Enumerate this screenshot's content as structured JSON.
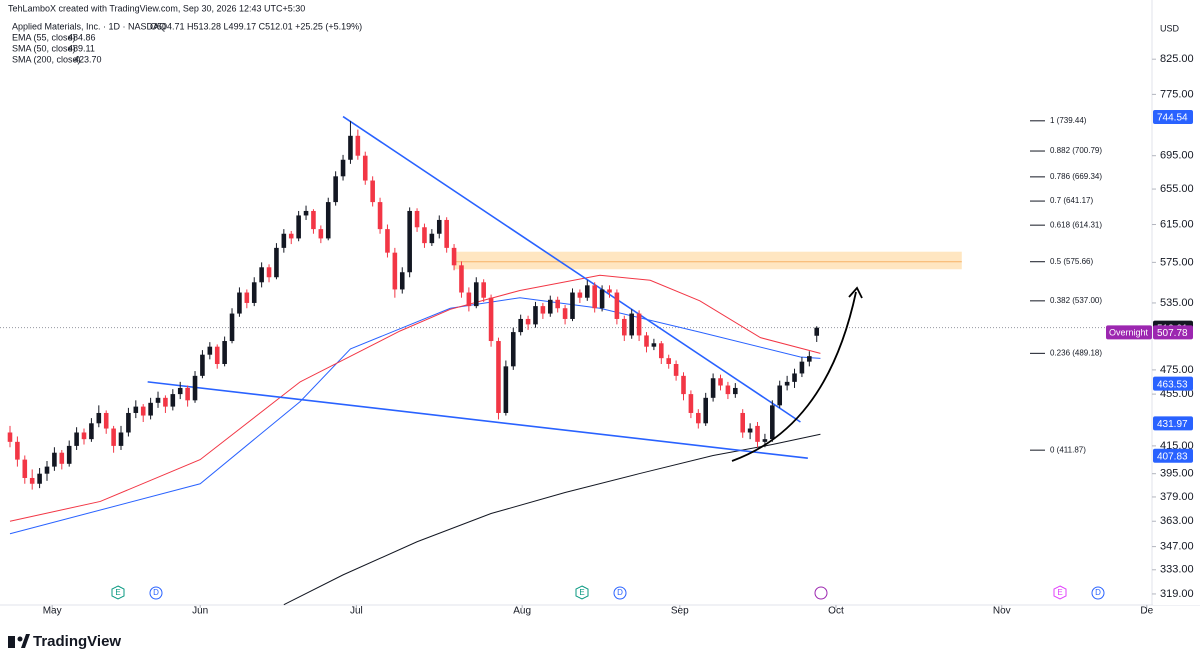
{
  "chart_data": {
    "type": "candlestick",
    "watermark": "TehLamboX created with TradingView.com, Sep 30, 2026 12:43 UTC+5:30",
    "symbol": "Applied Materials, Inc. · 1D · NASDAQ",
    "ohlc": "O504.71 H513.28 L499.17 C512.01 +25.25 (+5.19%)",
    "currency": "USD",
    "brand": "TradingView",
    "log": true,
    "ylim": [
      312.8,
      916.5
    ],
    "xlim": [
      -1.35,
      154.3
    ],
    "up_color": "#131722",
    "down_color": "#f23645",
    "yticks": [
      {
        "value": 825,
        "label": "825.00"
      },
      {
        "value": 775,
        "label": "775.00"
      },
      {
        "value": 695,
        "label": "695.00"
      },
      {
        "value": 655,
        "label": "655.00"
      },
      {
        "value": 615,
        "label": "615.00"
      },
      {
        "value": 575,
        "label": "575.00"
      },
      {
        "value": 535,
        "label": "535.00"
      },
      {
        "value": 475,
        "label": "475.00"
      },
      {
        "value": 455,
        "label": "455.00"
      },
      {
        "value": 415,
        "label": "415.00"
      },
      {
        "value": 395,
        "label": "395.00"
      },
      {
        "value": 379,
        "label": "379.00"
      },
      {
        "value": 363,
        "label": "363.00"
      },
      {
        "value": 347,
        "label": "347.00"
      },
      {
        "value": 333,
        "label": "333.00"
      },
      {
        "value": 319,
        "label": "319.00"
      }
    ],
    "xticks": [
      {
        "value": 5.7,
        "label": "May"
      },
      {
        "value": 25.7,
        "label": "Jun"
      },
      {
        "value": 46.8,
        "label": "Jul"
      },
      {
        "value": 69.2,
        "label": "Aug"
      },
      {
        "value": 90.5,
        "label": "Sep"
      },
      {
        "value": 111.6,
        "label": "Oct"
      },
      {
        "value": 134,
        "label": "Nov"
      },
      {
        "value": 153.6,
        "label": "De"
      }
    ],
    "candles": [
      [
        425,
        430,
        414,
        418
      ],
      [
        418,
        422,
        400,
        405
      ],
      [
        405,
        408,
        388,
        392
      ],
      [
        392,
        398,
        384,
        388
      ],
      [
        388,
        399,
        385,
        395
      ],
      [
        395,
        404,
        390,
        400
      ],
      [
        400,
        414,
        397,
        410
      ],
      [
        410,
        412,
        398,
        402
      ],
      [
        402,
        419,
        400,
        415
      ],
      [
        415,
        429,
        412,
        425
      ],
      [
        425,
        428,
        416,
        420
      ],
      [
        420,
        436,
        418,
        432
      ],
      [
        432,
        446,
        429,
        440
      ],
      [
        440,
        442,
        424,
        428
      ],
      [
        428,
        430,
        410,
        415
      ],
      [
        415,
        430,
        412,
        425
      ],
      [
        425,
        444,
        422,
        440
      ],
      [
        440,
        450,
        436,
        445
      ],
      [
        445,
        447,
        433,
        438
      ],
      [
        438,
        452,
        435,
        448
      ],
      [
        448,
        457,
        444,
        452
      ],
      [
        452,
        454,
        440,
        445
      ],
      [
        445,
        459,
        442,
        455
      ],
      [
        455,
        465,
        451,
        460
      ],
      [
        460,
        462,
        445,
        450
      ],
      [
        450,
        474,
        448,
        470
      ],
      [
        470,
        492,
        468,
        488
      ],
      [
        488,
        499,
        484,
        495
      ],
      [
        495,
        497,
        476,
        480
      ],
      [
        480,
        504,
        478,
        500
      ],
      [
        500,
        530,
        498,
        525
      ],
      [
        525,
        550,
        522,
        545
      ],
      [
        545,
        548,
        530,
        535
      ],
      [
        535,
        560,
        532,
        555
      ],
      [
        555,
        575,
        550,
        570
      ],
      [
        570,
        573,
        555,
        560
      ],
      [
        560,
        595,
        558,
        590
      ],
      [
        590,
        610,
        585,
        605
      ],
      [
        605,
        608,
        594,
        600
      ],
      [
        600,
        630,
        597,
        625
      ],
      [
        625,
        636,
        620,
        630
      ],
      [
        630,
        632,
        605,
        610
      ],
      [
        610,
        614,
        595,
        600
      ],
      [
        600,
        645,
        598,
        640
      ],
      [
        640,
        676,
        636,
        670
      ],
      [
        670,
        696,
        665,
        690
      ],
      [
        690,
        739,
        685,
        720
      ],
      [
        720,
        728,
        690,
        695
      ],
      [
        695,
        700,
        660,
        665
      ],
      [
        665,
        670,
        635,
        640
      ],
      [
        640,
        645,
        605,
        610
      ],
      [
        610,
        615,
        580,
        585
      ],
      [
        585,
        590,
        540,
        548
      ],
      [
        548,
        570,
        544,
        565
      ],
      [
        565,
        634,
        560,
        630
      ],
      [
        630,
        633,
        607,
        612
      ],
      [
        612,
        616,
        590,
        595
      ],
      [
        595,
        610,
        592,
        605
      ],
      [
        605,
        625,
        600,
        620
      ],
      [
        620,
        623,
        585,
        590
      ],
      [
        590,
        594,
        567,
        572
      ],
      [
        572,
        576,
        540,
        545
      ],
      [
        545,
        550,
        527,
        532
      ],
      [
        532,
        560,
        530,
        555
      ],
      [
        555,
        558,
        536,
        540
      ],
      [
        540,
        543,
        495,
        500
      ],
      [
        500,
        503,
        435,
        440
      ],
      [
        440,
        483,
        438,
        478
      ],
      [
        478,
        512,
        475,
        508
      ],
      [
        508,
        524,
        505,
        520
      ],
      [
        520,
        523,
        510,
        515
      ],
      [
        515,
        536,
        512,
        532
      ],
      [
        532,
        535,
        520,
        525
      ],
      [
        525,
        542,
        522,
        538
      ],
      [
        538,
        541,
        526,
        530
      ],
      [
        530,
        533,
        515,
        520
      ],
      [
        520,
        549,
        518,
        545
      ],
      [
        545,
        548,
        535,
        540
      ],
      [
        540,
        557,
        537,
        552
      ],
      [
        552,
        555,
        526,
        530
      ],
      [
        530,
        552,
        527,
        548
      ],
      [
        548,
        552,
        540,
        545
      ],
      [
        545,
        548,
        515,
        520
      ],
      [
        520,
        523,
        500,
        505
      ],
      [
        505,
        529,
        502,
        525
      ],
      [
        525,
        528,
        500,
        505
      ],
      [
        505,
        508,
        490,
        495
      ],
      [
        495,
        502,
        492,
        498
      ],
      [
        498,
        500,
        480,
        485
      ],
      [
        485,
        488,
        476,
        480
      ],
      [
        480,
        483,
        466,
        470
      ],
      [
        470,
        473,
        450,
        455
      ],
      [
        455,
        458,
        436,
        440
      ],
      [
        440,
        443,
        428,
        432
      ],
      [
        432,
        456,
        430,
        452
      ],
      [
        452,
        472,
        449,
        468
      ],
      [
        468,
        471,
        458,
        462
      ],
      [
        462,
        465,
        451,
        455
      ],
      [
        455,
        464,
        452,
        460
      ],
      [
        440,
        443,
        421,
        425
      ],
      [
        425,
        432,
        420,
        428
      ],
      [
        430,
        433,
        414,
        418
      ],
      [
        418,
        424,
        414,
        420
      ],
      [
        420,
        450,
        418,
        446
      ],
      [
        446,
        466,
        444,
        462
      ],
      [
        462,
        470,
        458,
        465
      ],
      [
        465,
        476,
        460,
        472
      ],
      [
        472,
        486,
        469,
        482
      ],
      [
        482,
        491,
        478,
        486.76
      ],
      [
        504.71,
        513.28,
        499.17,
        512.01
      ]
    ],
    "indicators": [
      {
        "name": "EMA (55, close)",
        "value": 484.86,
        "color": "#2962ff",
        "points": [
          [
            0,
            355
          ],
          [
            25.7,
            388
          ],
          [
            39.2,
            449
          ],
          [
            46,
            493
          ],
          [
            59.5,
            530
          ],
          [
            68.9,
            540
          ],
          [
            79.7,
            530
          ],
          [
            93.2,
            508
          ],
          [
            106.8,
            486
          ],
          [
            109.5,
            484.86
          ]
        ]
      },
      {
        "name": "SMA (50, close)",
        "value": 489.11,
        "color": "#f23645",
        "points": [
          [
            0,
            363
          ],
          [
            12.2,
            376
          ],
          [
            25.7,
            405
          ],
          [
            39.2,
            465
          ],
          [
            52.7,
            509
          ],
          [
            59.5,
            529
          ],
          [
            68.9,
            547
          ],
          [
            79.7,
            562
          ],
          [
            86.5,
            557
          ],
          [
            93.2,
            537
          ],
          [
            101.4,
            503
          ],
          [
            109.5,
            489.11
          ]
        ]
      },
      {
        "name": "SMA (200, close)",
        "value": 423.7,
        "value_label": "423.70",
        "color": "#131722",
        "points": [
          [
            37,
            313
          ],
          [
            45,
            330
          ],
          [
            55,
            350
          ],
          [
            65,
            368
          ],
          [
            75,
            382
          ],
          [
            85,
            395
          ],
          [
            95,
            408
          ],
          [
            103,
            416
          ],
          [
            109.5,
            423.7
          ]
        ]
      }
    ],
    "trendlines": [
      {
        "color": "#2962ff",
        "points": [
          [
            45,
            745
          ],
          [
            106.8,
            433
          ]
        ]
      },
      {
        "color": "#2962ff",
        "points": [
          [
            18.6,
            465
          ],
          [
            107.8,
            406
          ]
        ]
      }
    ],
    "zone": {
      "x": [
        60,
        128.6
      ],
      "y": [
        568,
        586
      ],
      "color": "#ffe0b2"
    },
    "fib": [
      {
        "label": "1 (739.44)",
        "price": 739.44
      },
      {
        "label": "0.882 (700.79)",
        "price": 700.79
      },
      {
        "label": "0.786 (669.34)",
        "price": 669.34
      },
      {
        "label": "0.7 (641.17)",
        "price": 641.17
      },
      {
        "label": "0.618 (614.31)",
        "price": 614.31
      },
      {
        "label": "0.5 (575.66)",
        "price": 575.66
      },
      {
        "label": "0.382 (537.00)",
        "price": 537.0
      },
      {
        "label": "0.236 (489.18)",
        "price": 489.18
      },
      {
        "label": "0 (411.87)",
        "price": 411.87
      }
    ],
    "last_price": 512.01,
    "price_tags": [
      {
        "value": 744.54,
        "color": "#2962ff"
      },
      {
        "value": 512.01,
        "color": "#131722"
      },
      {
        "value": 507.78,
        "color": "#9c27b0",
        "label": "Overnight"
      },
      {
        "value": 463.53,
        "color": "#2962ff"
      },
      {
        "value": 431.97,
        "color": "#2962ff"
      },
      {
        "value": 407.83,
        "color": "#2962ff"
      }
    ],
    "events": [
      "E",
      "D",
      "E",
      "D",
      "E",
      "D"
    ]
  }
}
